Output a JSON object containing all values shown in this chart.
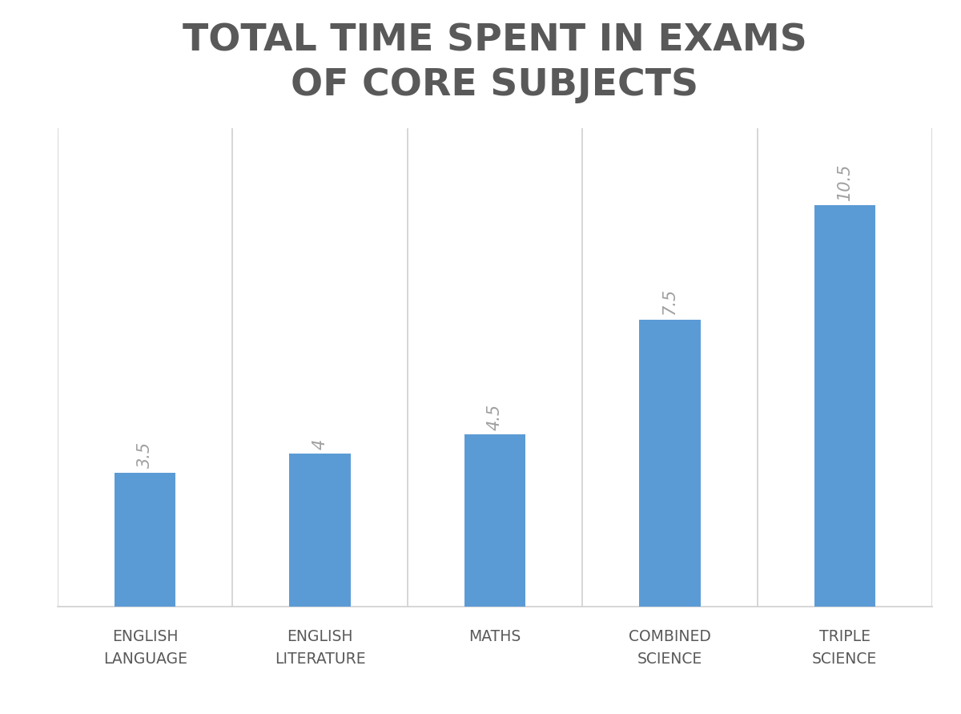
{
  "title": "TOTAL TIME SPENT IN EXAMS\nOF CORE SUBJECTS",
  "categories": [
    "ENGLISH\nLANGUAGE",
    "ENGLISH\nLITERATURE",
    "MATHS",
    "COMBINED\nSCIENCE",
    "TRIPLE\nSCIENCE"
  ],
  "values": [
    3.5,
    4.0,
    4.5,
    7.5,
    10.5
  ],
  "bar_color": "#5b9bd5",
  "background_color": "#ffffff",
  "plot_bg_color": "#ffffff",
  "title_color": "#595959",
  "label_color": "#595959",
  "value_label_color": "#a0a0a0",
  "grid_color": "#d0d0d0",
  "ylim": [
    0,
    12.5
  ],
  "title_fontsize": 34,
  "tick_fontsize": 13.5,
  "value_fontsize": 15,
  "bar_width": 0.35,
  "bar_positions": [
    0,
    1,
    2,
    3,
    4
  ]
}
